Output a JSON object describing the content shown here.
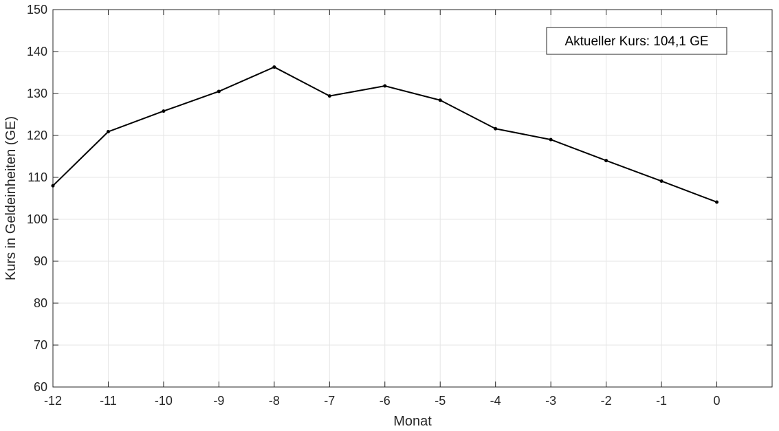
{
  "chart_data": {
    "type": "line",
    "title": "",
    "xlabel": "Monat",
    "ylabel": "Kurs in Geldeinheiten (GE)",
    "xlim": [
      -12,
      1
    ],
    "ylim": [
      60,
      150
    ],
    "xticks": [
      -12,
      -11,
      -10,
      -9,
      -8,
      -7,
      -6,
      -5,
      -4,
      -3,
      -2,
      -1,
      0
    ],
    "yticks": [
      60,
      70,
      80,
      90,
      100,
      110,
      120,
      130,
      140,
      150
    ],
    "x": [
      -12,
      -11,
      -10,
      -9,
      -8,
      -7,
      -6,
      -5,
      -4,
      -3,
      -2,
      -1,
      0
    ],
    "series": [
      {
        "values": [
          108,
          120.9,
          125.8,
          130.5,
          136.3,
          129.4,
          131.8,
          128.4,
          121.6,
          119.0,
          114.0,
          109.1,
          104.1
        ]
      }
    ],
    "grid": true,
    "annotation": "Aktueller Kurs: 104,1 GE",
    "colors": {
      "line": "#000000",
      "grid": "#e6e6e6",
      "axis": "#262626"
    }
  }
}
